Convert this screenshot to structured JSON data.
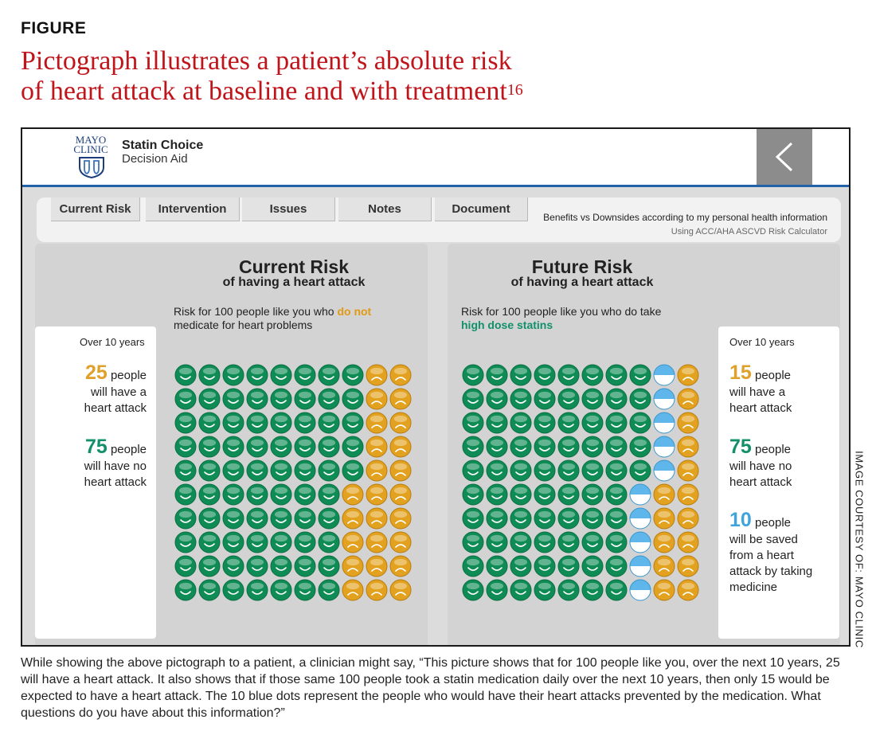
{
  "figure": {
    "label": "FIGURE",
    "title_line1": "Pictograph illustrates a patient’s absolute risk",
    "title_line2": "of heart attack at baseline and with treatment",
    "title_ref": "16",
    "credit": "IMAGE COURTESY OF: MAYO CLINIC",
    "caption": "While showing the above pictograph to a patient, a clinician might say, “This picture shows that for 100 people like you, over the next 10 years, 25 will have a heart attack. It also shows that if those same 100 people took a statin medication daily over the next 10 years, then only 15 would be expected to have a heart attack. The 10 blue dots represent the people who would have their heart attacks prevented by the medication. What questions do you have about this information?”"
  },
  "app": {
    "logo_line1": "MAYO",
    "logo_line2": "CLINIC",
    "title": "Statin Choice",
    "subtitle": "Decision Aid",
    "back_icon": "chevron-left-icon"
  },
  "tabs": [
    {
      "label": "Current Risk"
    },
    {
      "label": "Intervention"
    },
    {
      "label": "Issues"
    },
    {
      "label": "Notes"
    },
    {
      "label": "Document"
    }
  ],
  "nav_info": {
    "line1": "Benefits vs Downsides according to my personal health information",
    "line2": "Using ACC/AHA ASCVD Risk Calculator"
  },
  "current": {
    "title": "Current Risk",
    "subtitle": "of having a heart attack",
    "desc_prefix": "Risk for 100 people like you who ",
    "desc_highlight": "do not",
    "desc_line2": "medicate for heart problems",
    "card": {
      "header": "Over 10 years",
      "stat1_num": "25",
      "stat1_word": "people",
      "stat1_l2": "will have a",
      "stat1_l3": "heart attack",
      "stat2_num": "75",
      "stat2_word": "people",
      "stat2_l2": "will have no",
      "stat2_l3": "heart attack"
    }
  },
  "future": {
    "title": "Future Risk",
    "subtitle": "of having a heart attack",
    "desc_line1": "Risk for 100 people like you who do take",
    "desc_highlight": "high dose statins",
    "card": {
      "header": "Over 10 years",
      "stat1_num": "15",
      "stat1_word": "people",
      "stat1_l2": "will have a",
      "stat1_l3": "heart attack",
      "stat2_num": "75",
      "stat2_word": "people",
      "stat2_l2": "will have no",
      "stat2_l3": "heart attack",
      "stat3_num": "10",
      "stat3_word": "people",
      "stat3_l2": "will be saved",
      "stat3_l3": "from a heart",
      "stat3_l4": "attack by taking",
      "stat3_l5": "medicine"
    }
  },
  "chart_data": [
    {
      "type": "pictograph",
      "name": "Current Risk",
      "total": 100,
      "rows": 10,
      "cols": 10,
      "green_per_row": [
        8,
        8,
        8,
        8,
        8,
        7,
        7,
        7,
        7,
        7
      ],
      "blue_per_row": [
        0,
        0,
        0,
        0,
        0,
        0,
        0,
        0,
        0,
        0
      ],
      "orange_per_row": [
        2,
        2,
        2,
        2,
        2,
        3,
        3,
        3,
        3,
        3
      ],
      "counts": {
        "green": 75,
        "blue": 0,
        "orange": 25
      }
    },
    {
      "type": "pictograph",
      "name": "Future Risk",
      "total": 100,
      "rows": 10,
      "cols": 10,
      "green_per_row": [
        8,
        8,
        8,
        8,
        8,
        7,
        7,
        7,
        7,
        7
      ],
      "blue_per_row": [
        1,
        1,
        1,
        1,
        1,
        1,
        1,
        1,
        1,
        1
      ],
      "orange_per_row": [
        1,
        1,
        1,
        1,
        1,
        2,
        2,
        2,
        2,
        2
      ],
      "counts": {
        "green": 75,
        "blue": 10,
        "orange": 15
      }
    }
  ],
  "colors": {
    "title_red": "#c0141b",
    "green": "#0f8c55",
    "orange": "#e2a21f",
    "blue": "#5fb6ea",
    "header_line": "#2262a8"
  }
}
